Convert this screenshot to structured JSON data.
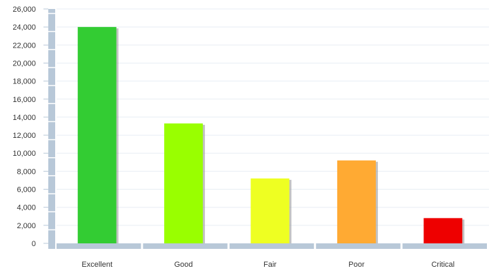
{
  "chart_data": {
    "type": "bar",
    "title": "",
    "xlabel": "",
    "ylabel": "",
    "categories": [
      "Excellent",
      "Good",
      "Fair",
      "Poor",
      "Critical"
    ],
    "values": [
      24000,
      13300,
      7200,
      9200,
      2800
    ],
    "colors": [
      "#33cc33",
      "#99ff00",
      "#eeff22",
      "#ffaa33",
      "#ee0000"
    ],
    "ylim": [
      0,
      26000
    ],
    "yticks": [
      "0",
      "2,000",
      "4,000",
      "6,000",
      "8,000",
      "10,000",
      "12,000",
      "14,000",
      "16,000",
      "18,000",
      "20,000",
      "22,000",
      "24,000",
      "26,000"
    ],
    "grid": true,
    "axis_color": "#b8c8d8",
    "grid_color": "#e8eef4"
  }
}
